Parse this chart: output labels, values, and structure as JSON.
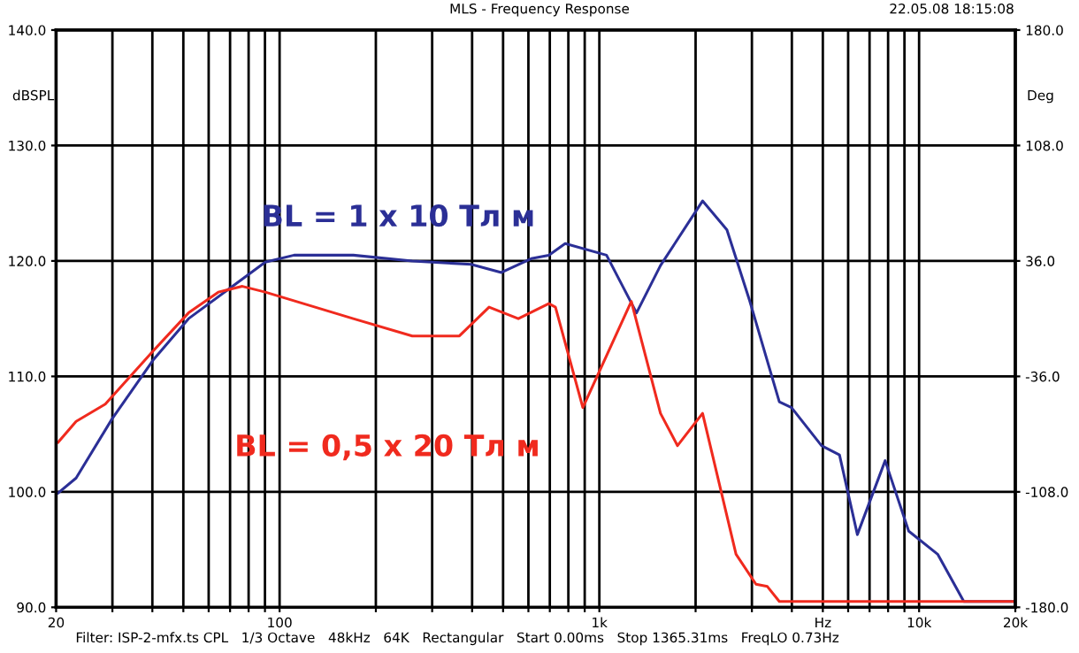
{
  "chart_data": {
    "type": "line",
    "title": "MLS - Frequency Response",
    "subtitle": "22.05.08 18:15:08",
    "ylabel": "dBSPL",
    "y2label": "Deg",
    "annotations": [
      "Filter: ISP-2-mfx.ts CPL   1/3 Octave   48kHz   64K   Rectangular   Start 0.00ms   Stop 1365.31ms   FreqLO 0.73Hz"
    ],
    "log": "x",
    "grid": true,
    "legend": false,
    "line_style": "solid",
    "marker": "none",
    "xlim": [
      20,
      20000
    ],
    "xticks": [
      {
        "value": 20,
        "label": "20"
      },
      {
        "value": 30,
        "label": null
      },
      {
        "value": 40,
        "label": null
      },
      {
        "value": 50,
        "label": null
      },
      {
        "value": 60,
        "label": null
      },
      {
        "value": 70,
        "label": null
      },
      {
        "value": 80,
        "label": null
      },
      {
        "value": 90,
        "label": null
      },
      {
        "value": 100,
        "label": "100"
      },
      {
        "value": 200,
        "label": null
      },
      {
        "value": 300,
        "label": null
      },
      {
        "value": 400,
        "label": null
      },
      {
        "value": 500,
        "label": null
      },
      {
        "value": 600,
        "label": null
      },
      {
        "value": 700,
        "label": null
      },
      {
        "value": 800,
        "label": null
      },
      {
        "value": 900,
        "label": null
      },
      {
        "value": 1000,
        "label": "1k"
      },
      {
        "value": 2000,
        "label": null
      },
      {
        "value": 3000,
        "label": null
      },
      {
        "value": 4000,
        "label": null
      },
      {
        "value": 5000,
        "label": "Hz"
      },
      {
        "value": 6000,
        "label": null
      },
      {
        "value": 7000,
        "label": null
      },
      {
        "value": 8000,
        "label": null
      },
      {
        "value": 9000,
        "label": null
      },
      {
        "value": 10000,
        "label": "10k"
      },
      {
        "value": 20000,
        "label": "20k"
      }
    ],
    "ylim": [
      90,
      140
    ],
    "yticks": [
      {
        "value": 90,
        "label": "90.0"
      },
      {
        "value": 100,
        "label": "100.0"
      },
      {
        "value": 110,
        "label": "110.0"
      },
      {
        "value": 120,
        "label": "120.0"
      },
      {
        "value": 130,
        "label": "130.0"
      },
      {
        "value": 140,
        "label": "140.0"
      }
    ],
    "y2lim": [
      -180,
      180
    ],
    "y2ticks": [
      {
        "value": -180,
        "label": "-180.0"
      },
      {
        "value": -108,
        "label": "-108.0"
      },
      {
        "value": -36,
        "label": "-36.0"
      },
      {
        "value": 36,
        "label": "36.0"
      },
      {
        "value": 108,
        "label": "108.0"
      },
      {
        "value": 180,
        "label": "180.0"
      }
    ],
    "series": [
      {
        "name": "BL = 1 x 10 Тл м",
        "color": "#2b2f96",
        "x": [
          20.3,
          23.1,
          29.9,
          40.2,
          51.9,
          69.6,
          90.2,
          111,
          170,
          260,
          397,
          494,
          612,
          695,
          782,
          1053,
          1307,
          1553,
          2103,
          2506,
          2956,
          3655,
          3990,
          4952,
          5637,
          6412,
          7832,
          9280,
          11430,
          13800,
          20000
        ],
        "values": [
          99.9,
          101.2,
          106.3,
          111.4,
          115.0,
          117.6,
          119.9,
          120.5,
          120.5,
          120.0,
          119.7,
          119.0,
          120.2,
          120.5,
          121.5,
          120.5,
          115.5,
          119.6,
          125.2,
          122.7,
          116.5,
          107.8,
          107.3,
          104.0,
          103.2,
          96.3,
          102.7,
          96.6,
          94.6,
          90.5,
          90.5
        ]
      },
      {
        "name": "BL = 0,5 x 20 Тл м",
        "color": "#f02a1e",
        "x": [
          20.3,
          23.1,
          28.5,
          40.2,
          51.9,
          64.3,
          76.5,
          90.2,
          170,
          260,
          365,
          452,
          558,
          695,
          729,
          888,
          1259,
          1553,
          1756,
          2103,
          2676,
          3089,
          3353,
          3655,
          20000
        ],
        "values": [
          104.3,
          106.1,
          107.6,
          112.2,
          115.5,
          117.3,
          117.8,
          117.3,
          115.0,
          113.5,
          113.5,
          116.0,
          115.0,
          116.3,
          116.0,
          107.3,
          116.5,
          106.8,
          104.0,
          106.8,
          94.6,
          92.0,
          91.8,
          90.5,
          90.5
        ]
      }
    ]
  }
}
